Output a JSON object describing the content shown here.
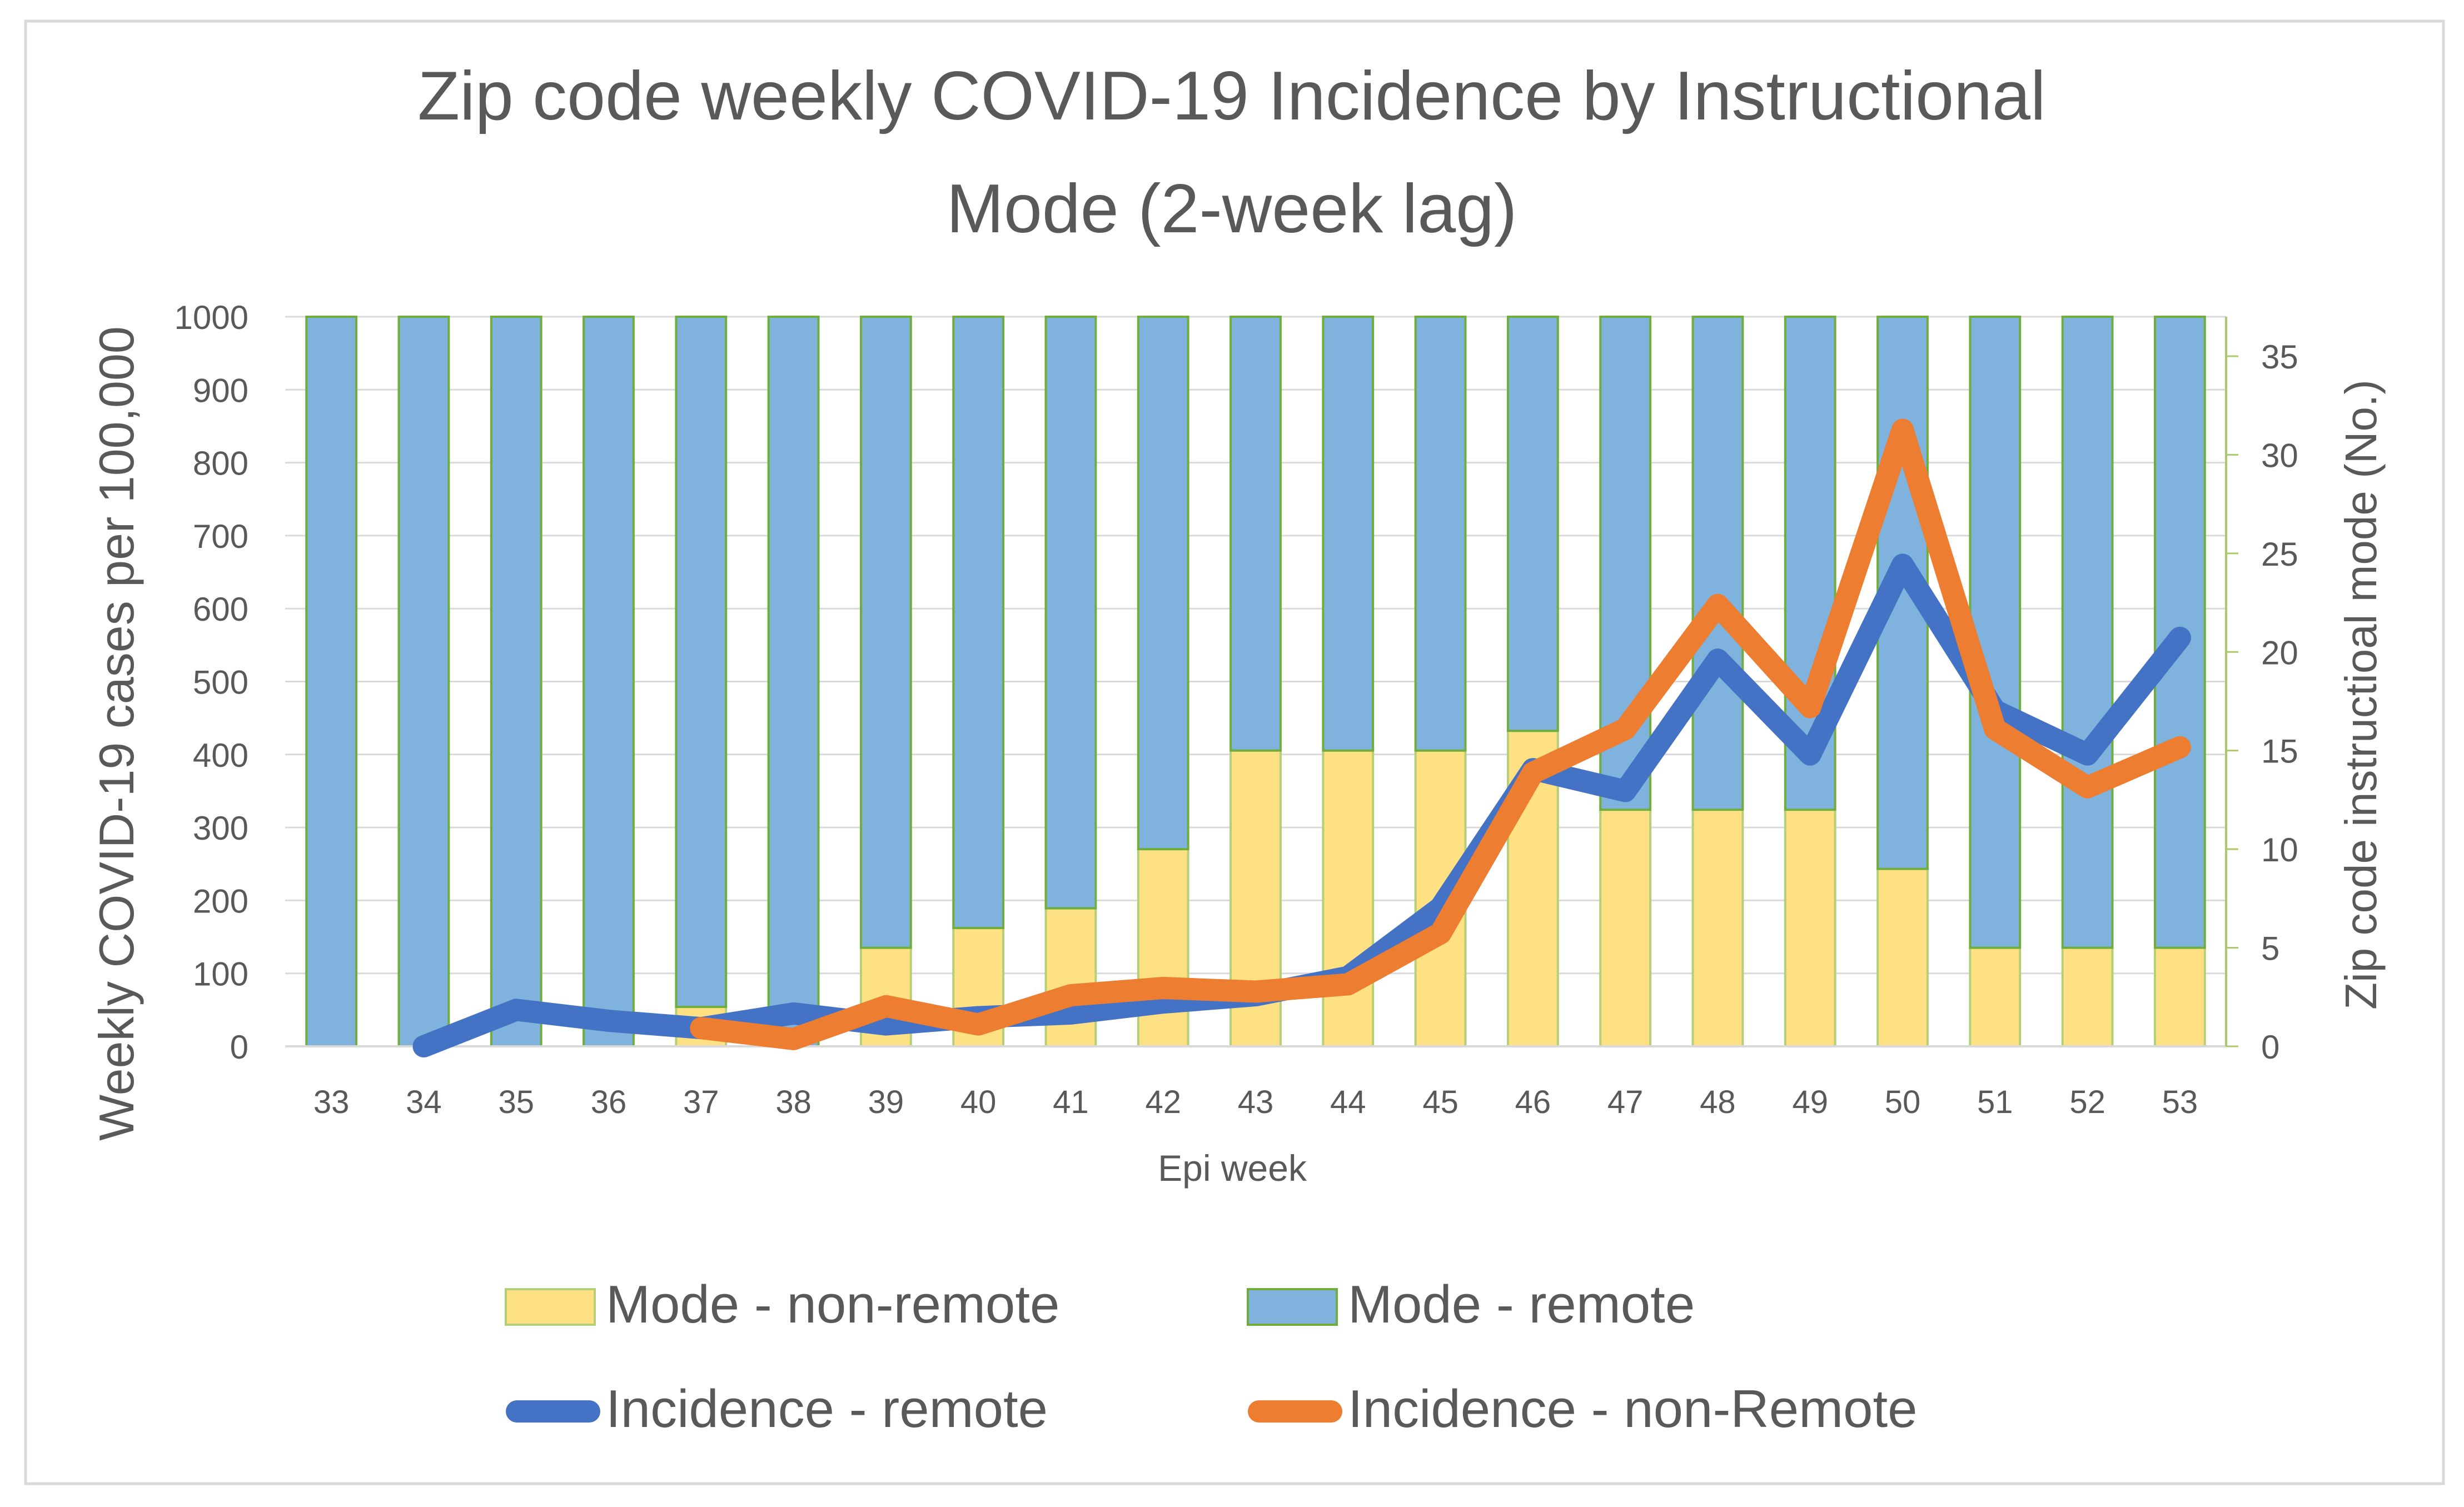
{
  "chart_data": {
    "type": "bar+line",
    "title": "Zip code weekly COVID-19 Incidence by Instructional Mode (2-week lag)",
    "title_lines": [
      "Zip code weekly COVID-19 Incidence by Instructional",
      "Mode (2-week lag)"
    ],
    "xlabel": "Epi week",
    "ylabel_left": "Weekly COVID-19  cases per 100,000",
    "ylabel_right": "Zip code instructioal mode (No.)",
    "categories": [
      "33",
      "34",
      "35",
      "36",
      "37",
      "38",
      "39",
      "40",
      "41",
      "42",
      "43",
      "44",
      "45",
      "46",
      "47",
      "48",
      "49",
      "50",
      "51",
      "52",
      "53"
    ],
    "y_left": {
      "min": 0,
      "max": 1000,
      "ticks": [
        "0",
        "100",
        "200",
        "300",
        "400",
        "500",
        "600",
        "700",
        "800",
        "900",
        "1000"
      ]
    },
    "y_right": {
      "min": 0,
      "max": 37,
      "ticks": [
        "0",
        "5",
        "10",
        "15",
        "20",
        "25",
        "30",
        "35"
      ]
    },
    "bar_series": [
      {
        "name": "Mode - non-remote",
        "axis": "right",
        "color": "#FFE082",
        "edge": "#B5CF78",
        "values": [
          0,
          0,
          0,
          0,
          2,
          0,
          5,
          6,
          7,
          10,
          15,
          15,
          15,
          16,
          12,
          12,
          12,
          9,
          5,
          5,
          5
        ]
      },
      {
        "name": "Mode - remote",
        "axis": "right",
        "color": "#7FB2DD",
        "edge": "#6FAE3C",
        "values": [
          37,
          37,
          37,
          37,
          35,
          37,
          32,
          31,
          30,
          27,
          22,
          22,
          22,
          21,
          25,
          25,
          25,
          28,
          32,
          32,
          32
        ]
      }
    ],
    "line_series": [
      {
        "name": "Incidence - remote",
        "axis": "left",
        "color": "#4472C4",
        "values": [
          null,
          0,
          50,
          35,
          25,
          45,
          30,
          40,
          45,
          60,
          70,
          95,
          190,
          380,
          350,
          530,
          400,
          660,
          460,
          400,
          560
        ]
      },
      {
        "name": "Incidence - non-Remote",
        "axis": "left",
        "color": "#ED7D31",
        "values": [
          null,
          null,
          null,
          null,
          25,
          10,
          55,
          30,
          70,
          80,
          75,
          85,
          155,
          375,
          435,
          605,
          465,
          845,
          435,
          355,
          410
        ]
      }
    ],
    "legend": [
      {
        "name": "Mode - non-remote",
        "kind": "bar",
        "color": "#FFE082",
        "edge": "#B5CF78"
      },
      {
        "name": "Mode - remote",
        "kind": "bar",
        "color": "#7FB2DD",
        "edge": "#6FAE3C"
      },
      {
        "name": "Incidence - remote",
        "kind": "line",
        "color": "#4472C4"
      },
      {
        "name": "Incidence - non-Remote",
        "kind": "line",
        "color": "#ED7D31"
      }
    ],
    "legend_position": "bottom"
  }
}
